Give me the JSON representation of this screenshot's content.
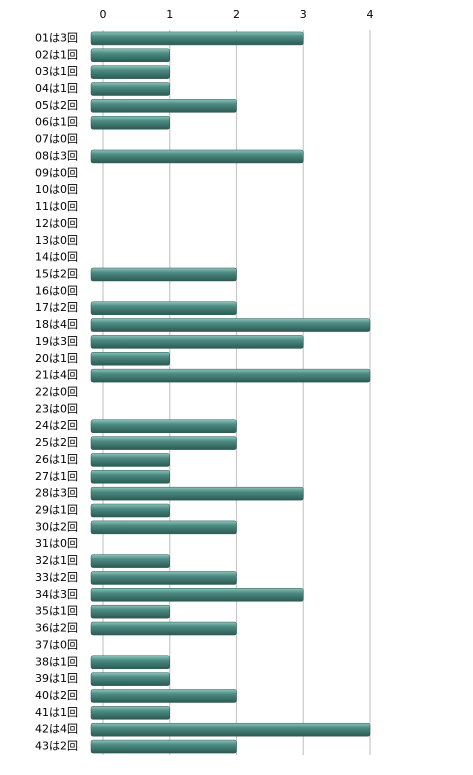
{
  "chart_data": {
    "type": "bar",
    "categories": [
      "01は3回",
      "02は1回",
      "03は1回",
      "04は1回",
      "05は2回",
      "06は1回",
      "07は0回",
      "08は3回",
      "09は0回",
      "10は0回",
      "11は0回",
      "12は0回",
      "13は0回",
      "14は0回",
      "15は2回",
      "16は0回",
      "17は2回",
      "18は4回",
      "19は3回",
      "20は1回",
      "21は4回",
      "22は0回",
      "23は0回",
      "24は2回",
      "25は2回",
      "26は1回",
      "27は1回",
      "28は3回",
      "29は1回",
      "30は2回",
      "31は0回",
      "32は1回",
      "33は2回",
      "34は3回",
      "35は1回",
      "36は2回",
      "37は0回",
      "38は1回",
      "39は1回",
      "40は2回",
      "41は1回",
      "42は4回",
      "43は2回"
    ],
    "values": [
      3,
      1,
      1,
      1,
      2,
      1,
      0,
      3,
      0,
      0,
      0,
      0,
      0,
      0,
      2,
      0,
      2,
      4,
      3,
      1,
      4,
      0,
      0,
      2,
      2,
      1,
      1,
      3,
      1,
      2,
      0,
      1,
      2,
      3,
      1,
      2,
      0,
      1,
      1,
      2,
      1,
      4,
      2
    ],
    "color": "#4d8c83",
    "xlim": [
      0,
      4
    ],
    "xticks": [
      0,
      1,
      2,
      3,
      4
    ],
    "grid": true
  }
}
